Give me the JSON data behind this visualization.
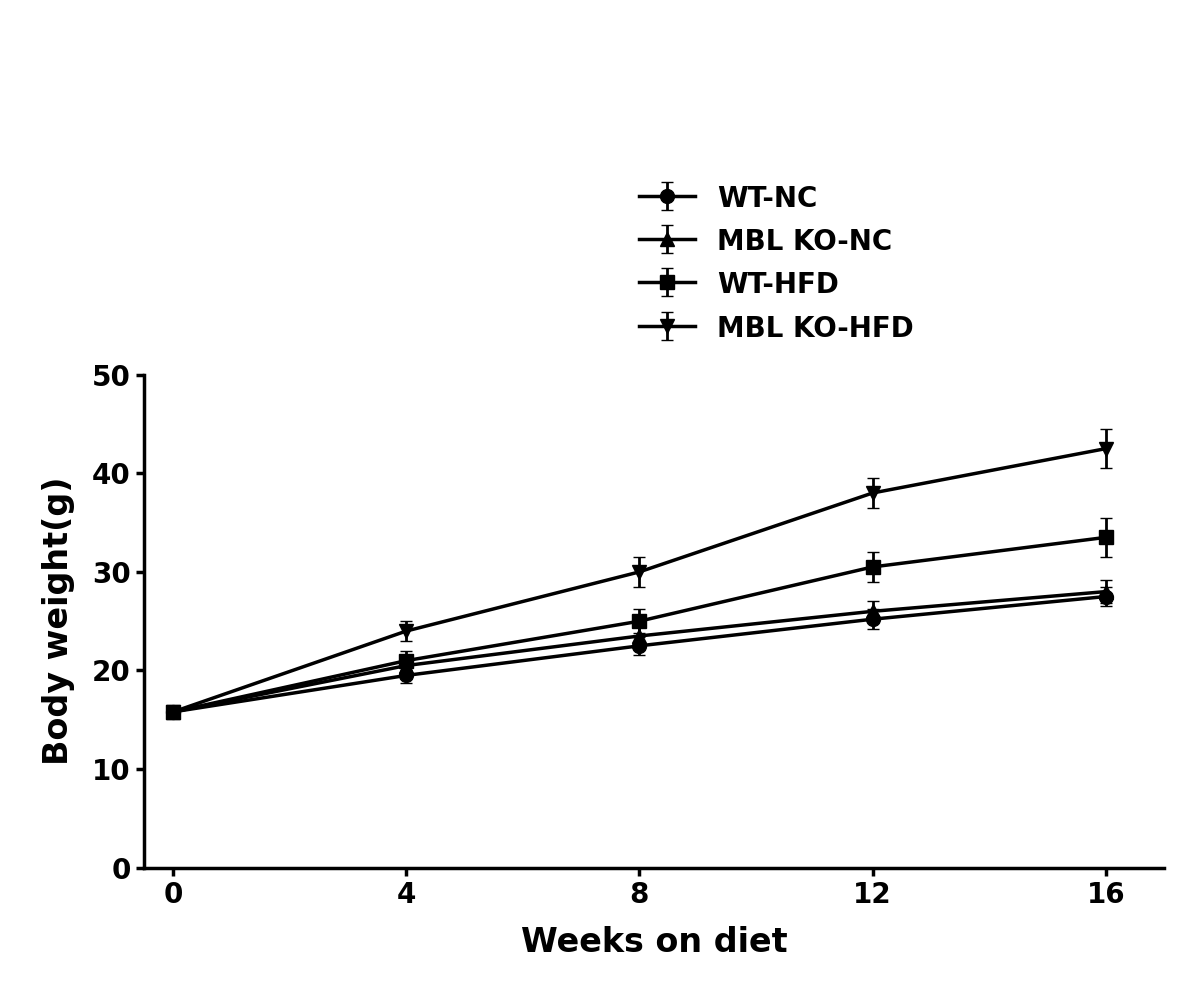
{
  "x": [
    0,
    4,
    8,
    12,
    16
  ],
  "series": [
    {
      "label": "WT-NC",
      "marker": "o",
      "y": [
        15.8,
        19.5,
        22.5,
        25.2,
        27.5
      ],
      "yerr": [
        0.3,
        0.8,
        0.9,
        1.0,
        1.0
      ]
    },
    {
      "label": "MBL KO-NC",
      "marker": "^",
      "y": [
        15.8,
        20.5,
        23.5,
        26.0,
        28.0
      ],
      "yerr": [
        0.3,
        0.9,
        1.0,
        1.0,
        1.2
      ]
    },
    {
      "label": "WT-HFD",
      "marker": "s",
      "y": [
        15.8,
        21.0,
        25.0,
        30.5,
        33.5
      ],
      "yerr": [
        0.3,
        1.0,
        1.2,
        1.5,
        2.0
      ]
    },
    {
      "label": "MBL KO-HFD",
      "marker": "v",
      "y": [
        15.8,
        24.0,
        30.0,
        38.0,
        42.5
      ],
      "yerr": [
        0.3,
        1.0,
        1.5,
        1.5,
        2.0
      ]
    }
  ],
  "xlabel": "Weeks on diet",
  "ylabel": "Body weight(g)",
  "xlim": [
    -0.5,
    17
  ],
  "ylim": [
    0,
    50
  ],
  "yticks": [
    0,
    10,
    20,
    30,
    40,
    50
  ],
  "xticks": [
    0,
    4,
    8,
    12,
    16
  ],
  "line_color": "#000000",
  "background_color": "#ffffff",
  "linewidth": 2.5,
  "markersize": 10,
  "capsize": 4,
  "elinewidth": 2.0,
  "legend_fontsize": 20,
  "axis_label_fontsize": 24,
  "tick_fontsize": 20
}
